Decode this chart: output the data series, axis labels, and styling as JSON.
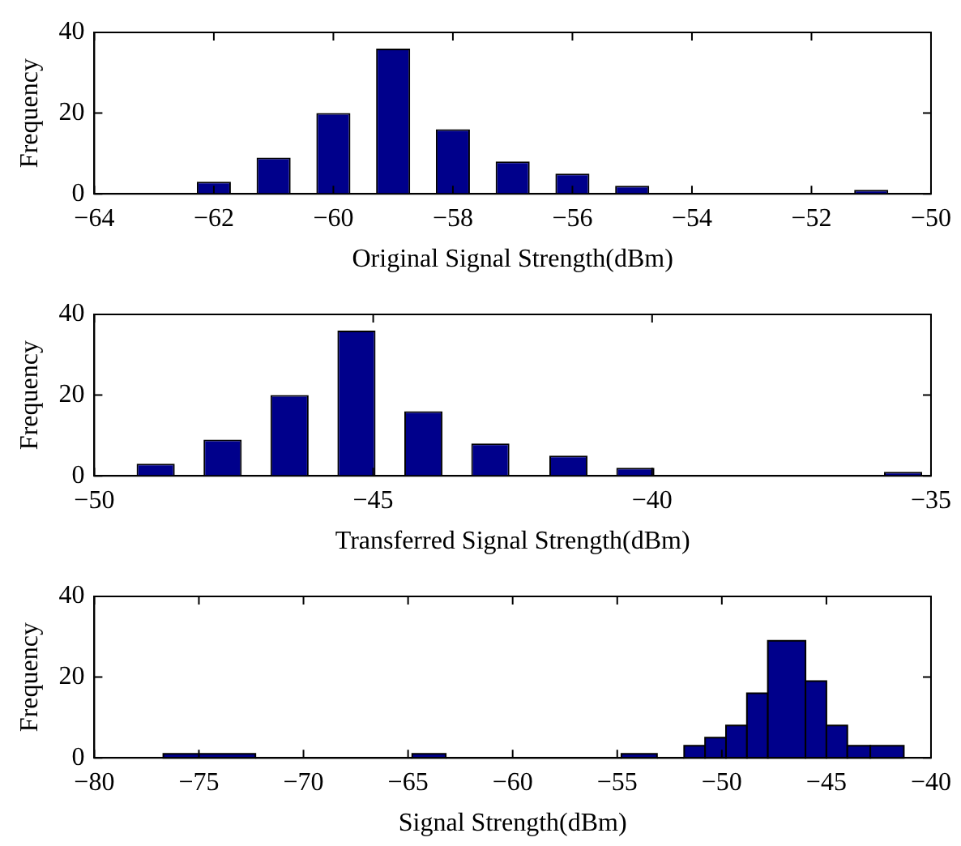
{
  "chart_data": [
    {
      "type": "bar",
      "xlabel": "Original Signal Strength(dBm)",
      "ylabel": "Frequency",
      "color": "#00008b",
      "x": [
        -62,
        -61,
        -60,
        -59,
        -58,
        -57,
        -56,
        -55,
        -54,
        -53,
        -52,
        -51
      ],
      "values": [
        3,
        9,
        20,
        36,
        16,
        8,
        5,
        2,
        0,
        0,
        0,
        1
      ],
      "xlim": [
        -64,
        -50
      ],
      "xticks": [
        -64,
        -62,
        -60,
        -58,
        -56,
        -54,
        -52,
        -50
      ],
      "ylim": [
        0,
        40
      ],
      "yticks": [
        0,
        20,
        40
      ]
    },
    {
      "type": "bar",
      "xlabel": "Transferred Signal Strength(dBm)",
      "ylabel": "Frequency",
      "color": "#00008b",
      "x": [
        -48.9,
        -47.7,
        -46.5,
        -45.3,
        -44.1,
        -42.9,
        -41.5,
        -40.3,
        -35.5
      ],
      "values": [
        3,
        9,
        20,
        36,
        16,
        8,
        5,
        2,
        1
      ],
      "xlim": [
        -50,
        -35
      ],
      "xticks": [
        -50,
        -45,
        -40,
        -35
      ],
      "ylim": [
        0,
        40
      ],
      "yticks": [
        0,
        20,
        40
      ]
    },
    {
      "type": "histogram",
      "xlabel": "Signal Strength(dBm)",
      "ylabel": "Frequency",
      "color": "#00008b",
      "bins": [
        -76.7,
        -72.3,
        -64.8,
        -63.2,
        -54.8,
        -53.1,
        -51.8,
        -50.8,
        -49.8,
        -48.8,
        -47.8,
        -46.0,
        -45.0,
        -44.0,
        -42.9,
        -41.3
      ],
      "values": [
        1,
        0,
        1,
        0,
        1,
        0,
        3,
        5,
        8,
        16,
        29,
        19,
        8,
        3,
        3
      ],
      "xlim": [
        -80,
        -40
      ],
      "xticks": [
        -80,
        -75,
        -70,
        -65,
        -60,
        -55,
        -50,
        -45,
        -40
      ],
      "ylim": [
        0,
        40
      ],
      "yticks": [
        0,
        20,
        40
      ]
    }
  ]
}
